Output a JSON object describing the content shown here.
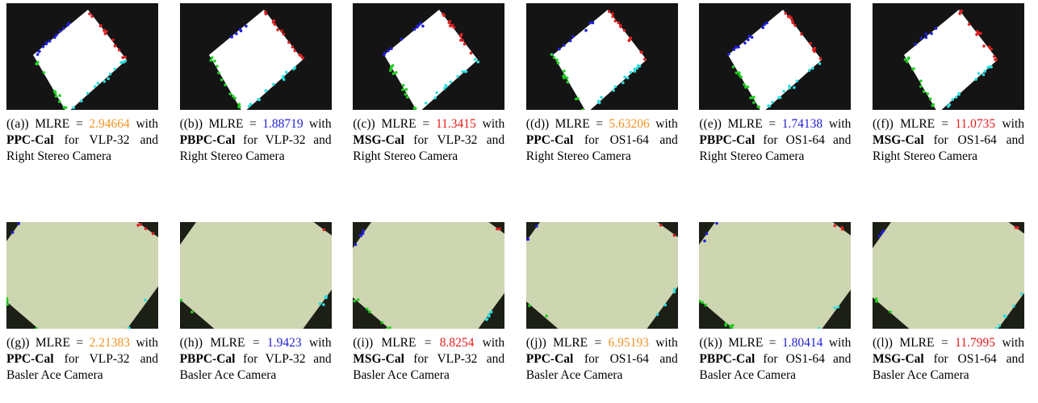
{
  "figure": {
    "panels": [
      {
        "label": "((a))",
        "metric": "MLRE =",
        "value": 2.94664,
        "value_color": "#f39322",
        "connector": "with",
        "method": "PPC-Cal",
        "suffix": "for VLP-32 and Right Stereo Camera"
      },
      {
        "label": "((b))",
        "metric": "MLRE =",
        "value": 1.88719,
        "value_color": "#1f1fd1",
        "connector": "with",
        "method": "PBPC-Cal",
        "suffix": "for VLP-32 and Right Stereo Camera"
      },
      {
        "label": "((c))",
        "metric": "MLRE =",
        "value": 11.3415,
        "value_color": "#e31a1c",
        "connector": "with",
        "method": "MSG-Cal",
        "suffix": "for VLP-32 and Right Stereo Camera"
      },
      {
        "label": "((d))",
        "metric": "MLRE =",
        "value": 5.63206,
        "value_color": "#f39322",
        "connector": "with",
        "method": "PPC-Cal",
        "suffix": "for OS1-64 and Right Stereo Camera"
      },
      {
        "label": "((e))",
        "metric": "MLRE =",
        "value": 1.74138,
        "value_color": "#1f1fd1",
        "connector": "with",
        "method": "PBPC-Cal",
        "suffix": "for OS1-64 and Right Stereo Camera"
      },
      {
        "label": "((f))",
        "metric": "MLRE =",
        "value": 11.0735,
        "value_color": "#e31a1c",
        "connector": "with",
        "method": "MSG-Cal",
        "suffix": "for OS1-64 and Right Stereo Camera"
      },
      {
        "label": "((g))",
        "metric": "MLRE =",
        "value": 2.21383,
        "value_color": "#f39322",
        "connector": "with",
        "method": "PPC-Cal",
        "suffix": "for VLP-32 and Basler Ace Camera"
      },
      {
        "label": "((h))",
        "metric": "MLRE =",
        "value": 1.9423,
        "value_color": "#1f1fd1",
        "connector": "with",
        "method": "PBPC-Cal",
        "suffix": "for VLP-32 and Basler Ace Camera"
      },
      {
        "label": "((i))",
        "metric": "MLRE =",
        "value": 8.8254,
        "value_color": "#e31a1c",
        "connector": "with",
        "method": "MSG-Cal",
        "suffix": "for VLP-32 and Basler Ace Camera"
      },
      {
        "label": "((j))",
        "metric": "MLRE =",
        "value": 6.95193,
        "value_color": "#f39322",
        "connector": "with",
        "method": "PPC-Cal",
        "suffix": "for OS1-64 and Basler Ace Camera"
      },
      {
        "label": "((k))",
        "metric": "MLRE =",
        "value": 1.80414,
        "value_color": "#1f1fd1",
        "connector": "with",
        "method": "PBPC-Cal",
        "suffix": "for OS1-64 and Basler Ace Camera"
      },
      {
        "label": "((l))",
        "metric": "MLRE =",
        "value": 11.7995,
        "value_color": "#e31a1c",
        "connector": "with",
        "method": "MSG-Cal",
        "suffix": "for OS1-64 and Basler Ace Camera"
      }
    ]
  }
}
